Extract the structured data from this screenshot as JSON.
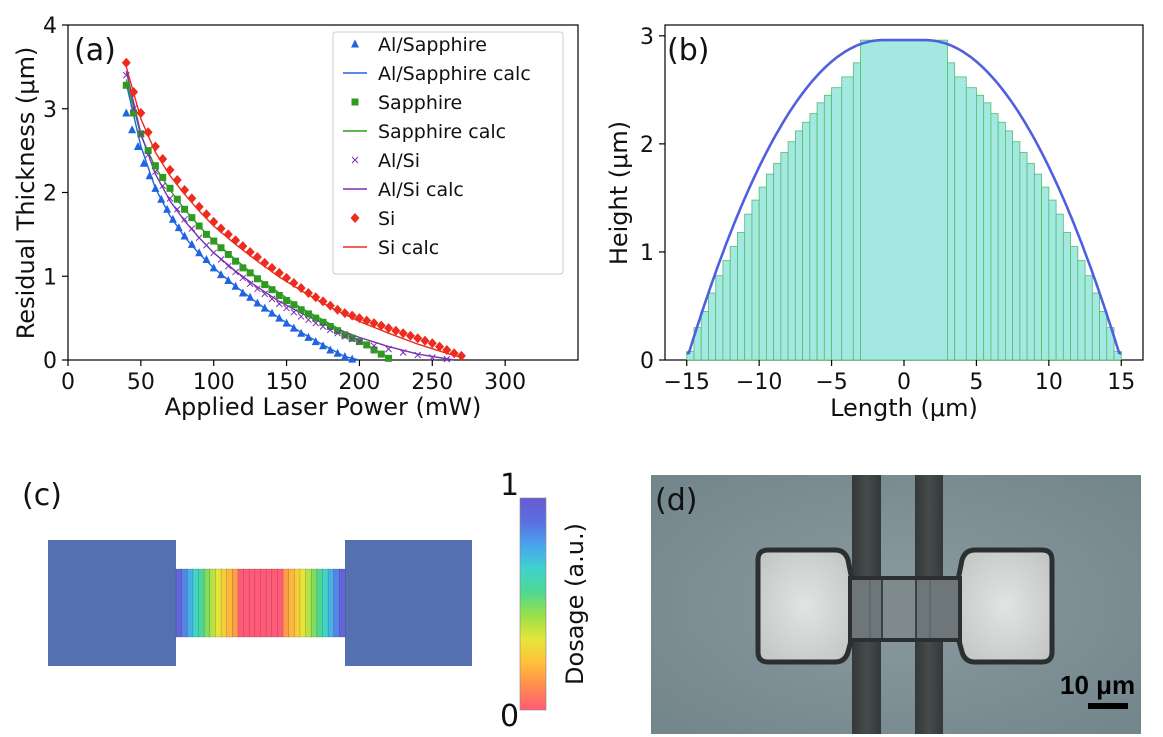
{
  "chart_data": [
    {
      "panel": "(a)",
      "type": "scatter",
      "title": "",
      "xlabel": "Applied Laser Power (mW)",
      "ylabel": "Residual Thickness (μm)",
      "xlim": [
        0,
        350
      ],
      "ylim": [
        0,
        4
      ],
      "xticks": [
        "0",
        "50",
        "100",
        "150",
        "200",
        "250",
        "300"
      ],
      "yticks": [
        "0",
        "1",
        "2",
        "3",
        "4"
      ],
      "legend_position": "top-right",
      "series": [
        {
          "name": "Al/Sapphire",
          "marker": "triangle",
          "color": "#1f64e0",
          "x": [
            40,
            44,
            48,
            52,
            56,
            60,
            64,
            68,
            72,
            76,
            80,
            85,
            90,
            95,
            100,
            105,
            110,
            115,
            120,
            125,
            130,
            135,
            140,
            145,
            150,
            155,
            160,
            165,
            170,
            175,
            180,
            185,
            190,
            195
          ],
          "y": [
            2.95,
            2.75,
            2.55,
            2.35,
            2.2,
            2.05,
            1.92,
            1.8,
            1.68,
            1.58,
            1.48,
            1.38,
            1.28,
            1.2,
            1.1,
            1.02,
            0.95,
            0.88,
            0.8,
            0.75,
            0.68,
            0.62,
            0.56,
            0.5,
            0.44,
            0.38,
            0.32,
            0.27,
            0.22,
            0.17,
            0.12,
            0.08,
            0.04,
            0.01
          ]
        },
        {
          "name": "Al/Sapphire calc",
          "marker": "line",
          "color": "#1f64e0",
          "x": [
            40,
            50,
            60,
            70,
            80,
            90,
            100,
            115,
            130,
            145,
            160,
            175,
            190,
            200
          ],
          "y": [
            3.3,
            2.55,
            2.05,
            1.72,
            1.47,
            1.27,
            1.1,
            0.88,
            0.68,
            0.5,
            0.33,
            0.18,
            0.04,
            0.0
          ]
        },
        {
          "name": "Sapphire",
          "marker": "square",
          "color": "#2e9a1f",
          "x": [
            40,
            45,
            50,
            55,
            60,
            65,
            70,
            75,
            80,
            85,
            90,
            95,
            100,
            105,
            110,
            115,
            120,
            125,
            130,
            135,
            140,
            145,
            150,
            155,
            160,
            165,
            170,
            175,
            180,
            185,
            190,
            195,
            200,
            205,
            210,
            215,
            220
          ],
          "y": [
            3.28,
            2.95,
            2.7,
            2.5,
            2.32,
            2.18,
            2.05,
            1.92,
            1.8,
            1.7,
            1.6,
            1.5,
            1.42,
            1.34,
            1.26,
            1.18,
            1.1,
            1.04,
            0.97,
            0.9,
            0.84,
            0.77,
            0.71,
            0.66,
            0.6,
            0.55,
            0.5,
            0.45,
            0.4,
            0.35,
            0.3,
            0.26,
            0.22,
            0.18,
            0.12,
            0.07,
            0.02
          ]
        },
        {
          "name": "Sapphire calc",
          "marker": "line",
          "color": "#2e9a1f",
          "x": [
            40,
            50,
            60,
            70,
            80,
            90,
            100,
            115,
            130,
            145,
            160,
            175,
            190,
            205,
            220
          ],
          "y": [
            3.35,
            2.68,
            2.3,
            2.03,
            1.8,
            1.6,
            1.42,
            1.2,
            0.98,
            0.8,
            0.62,
            0.48,
            0.33,
            0.18,
            0.03
          ]
        },
        {
          "name": "Al/Si",
          "marker": "x",
          "color": "#7a2fb5",
          "x": [
            40,
            45,
            50,
            55,
            60,
            65,
            70,
            75,
            80,
            85,
            90,
            95,
            100,
            105,
            110,
            115,
            120,
            125,
            130,
            135,
            140,
            145,
            150,
            155,
            160,
            165,
            170,
            175,
            180,
            185,
            190,
            195,
            200,
            210,
            220,
            230,
            240,
            250,
            260
          ],
          "y": [
            3.4,
            3.0,
            2.7,
            2.45,
            2.25,
            2.08,
            1.93,
            1.8,
            1.68,
            1.57,
            1.46,
            1.37,
            1.28,
            1.2,
            1.12,
            1.05,
            0.98,
            0.91,
            0.85,
            0.79,
            0.73,
            0.67,
            0.62,
            0.57,
            0.52,
            0.48,
            0.44,
            0.4,
            0.36,
            0.32,
            0.28,
            0.25,
            0.22,
            0.17,
            0.13,
            0.09,
            0.06,
            0.03,
            0.01
          ]
        },
        {
          "name": "Al/Si calc",
          "marker": "line",
          "color": "#7a2fb5",
          "x": [
            40,
            50,
            60,
            70,
            80,
            90,
            100,
            115,
            130,
            145,
            160,
            180,
            200,
            220,
            240,
            265
          ],
          "y": [
            3.45,
            2.7,
            2.22,
            1.9,
            1.66,
            1.46,
            1.28,
            1.06,
            0.87,
            0.7,
            0.56,
            0.4,
            0.27,
            0.16,
            0.07,
            0.0
          ]
        },
        {
          "name": "Si",
          "marker": "diamond",
          "color": "#ee2b1f",
          "x": [
            40,
            45,
            50,
            55,
            60,
            65,
            70,
            75,
            80,
            85,
            90,
            95,
            100,
            105,
            110,
            115,
            120,
            125,
            130,
            135,
            140,
            145,
            150,
            155,
            160,
            165,
            170,
            175,
            180,
            185,
            190,
            195,
            200,
            205,
            210,
            215,
            220,
            225,
            230,
            235,
            240,
            245,
            250,
            255,
            260,
            265,
            270
          ],
          "y": [
            3.55,
            3.2,
            2.95,
            2.72,
            2.55,
            2.4,
            2.27,
            2.15,
            2.03,
            1.93,
            1.83,
            1.74,
            1.65,
            1.57,
            1.5,
            1.43,
            1.36,
            1.29,
            1.23,
            1.16,
            1.1,
            1.04,
            0.98,
            0.92,
            0.86,
            0.8,
            0.75,
            0.7,
            0.65,
            0.6,
            0.56,
            0.53,
            0.5,
            0.47,
            0.44,
            0.41,
            0.38,
            0.35,
            0.32,
            0.29,
            0.26,
            0.23,
            0.2,
            0.16,
            0.12,
            0.08,
            0.05
          ]
        },
        {
          "name": "Si calc",
          "marker": "line",
          "color": "#ee2b1f",
          "x": [
            40,
            50,
            60,
            70,
            80,
            90,
            100,
            115,
            130,
            145,
            160,
            180,
            200,
            220,
            240,
            260,
            270
          ],
          "y": [
            3.5,
            2.88,
            2.48,
            2.2,
            1.98,
            1.78,
            1.6,
            1.38,
            1.18,
            0.99,
            0.83,
            0.63,
            0.46,
            0.32,
            0.19,
            0.08,
            0.03
          ]
        }
      ]
    },
    {
      "panel": "(b)",
      "type": "bar",
      "title": "",
      "xlabel": "Length (μm)",
      "ylabel": "Height (μm)",
      "xlim": [
        -16.5,
        16.5
      ],
      "ylim": [
        0,
        3.1
      ],
      "xticks": [
        "−15",
        "−10",
        "−5",
        "0",
        "5",
        "10",
        "15"
      ],
      "yticks": [
        "0",
        "1",
        "2",
        "3"
      ],
      "bar_color": "#a4e8e2",
      "bar_edge": "#4fbf6a",
      "curve_color": "#5060dd",
      "bins": [
        [
          -15,
          -14.5,
          0.08
        ],
        [
          -14.5,
          -14,
          0.3
        ],
        [
          -14,
          -13.5,
          0.45
        ],
        [
          -13.5,
          -13,
          0.62
        ],
        [
          -13,
          -12.5,
          0.78
        ],
        [
          -12.5,
          -12,
          0.92
        ],
        [
          -12,
          -11.5,
          1.05
        ],
        [
          -11.5,
          -11,
          1.18
        ],
        [
          -11,
          -10.5,
          1.35
        ],
        [
          -10.5,
          -10,
          1.48
        ],
        [
          -10,
          -9.5,
          1.6
        ],
        [
          -9.5,
          -9,
          1.72
        ],
        [
          -9,
          -8.5,
          1.82
        ],
        [
          -8.5,
          -8,
          1.92
        ],
        [
          -8,
          -7.5,
          2.02
        ],
        [
          -7.5,
          -7,
          2.12
        ],
        [
          -7,
          -6.5,
          2.2
        ],
        [
          -6.5,
          -6,
          2.28
        ],
        [
          -6,
          -5.5,
          2.38
        ],
        [
          -5.5,
          -5,
          2.45
        ],
        [
          -5,
          -4.3,
          2.52
        ],
        [
          -4.3,
          -3.5,
          2.62
        ],
        [
          -3.5,
          -3,
          2.75
        ],
        [
          -3,
          3,
          2.96
        ],
        [
          3,
          3.5,
          2.75
        ],
        [
          3.5,
          4.3,
          2.62
        ],
        [
          4.3,
          5,
          2.52
        ],
        [
          5,
          5.5,
          2.45
        ],
        [
          5.5,
          6,
          2.38
        ],
        [
          6,
          6.5,
          2.28
        ],
        [
          6.5,
          7,
          2.2
        ],
        [
          7,
          7.5,
          2.12
        ],
        [
          7.5,
          8,
          2.02
        ],
        [
          8,
          8.5,
          1.92
        ],
        [
          8.5,
          9,
          1.82
        ],
        [
          9,
          9.5,
          1.72
        ],
        [
          9.5,
          10,
          1.6
        ],
        [
          10,
          10.5,
          1.48
        ],
        [
          10.5,
          11,
          1.35
        ],
        [
          11,
          11.5,
          1.18
        ],
        [
          11.5,
          12,
          1.05
        ],
        [
          12,
          12.5,
          0.92
        ],
        [
          12.5,
          13,
          0.78
        ],
        [
          13,
          13.5,
          0.62
        ],
        [
          13.5,
          14,
          0.45
        ],
        [
          14,
          14.5,
          0.3
        ],
        [
          14.5,
          15,
          0.08
        ]
      ],
      "curve_peak": 2.96,
      "curve_halfwidth": 15,
      "curve_flat_halfwidth": 1.5
    }
  ],
  "panels": {
    "a_label": "(a)",
    "b_label": "(b)",
    "c_label": "(c)",
    "d_label": "(d)"
  },
  "panel_c": {
    "colorbar_label": "Dosage (a.u.)",
    "colorbar_max": "1",
    "colorbar_min": "0",
    "pad_color": "#5470b0",
    "colormap": [
      "#ff5a78",
      "#ff8c50",
      "#ffc03a",
      "#e6e63a",
      "#9ae04a",
      "#4ed890",
      "#3fd2cf",
      "#4aa4ee",
      "#5a6fe0",
      "#6a5ad0"
    ]
  },
  "panel_d": {
    "scale_bar_label": "10 μm"
  }
}
